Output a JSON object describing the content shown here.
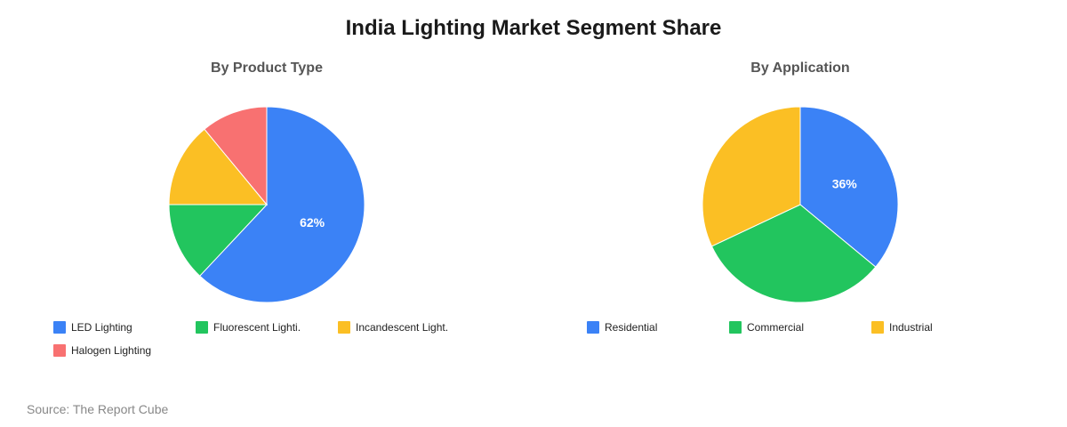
{
  "title": "India Lighting Market Segment Share",
  "source": "Source: The Report Cube",
  "chart_data": [
    {
      "type": "pie",
      "title": "By Product Type",
      "categories": [
        "LED Lighting",
        "Fluorescent Lighti.",
        "Incandescent Light.",
        "Halogen Lighting"
      ],
      "values": [
        62,
        13,
        14,
        11
      ],
      "colors": [
        "#3b82f6",
        "#22c55e",
        "#fbbf24",
        "#f87171"
      ],
      "labels": [
        "62%",
        "",
        "",
        ""
      ],
      "legend": "bottom"
    },
    {
      "type": "pie",
      "title": "By Application",
      "categories": [
        "Residential",
        "Commercial",
        "Industrial"
      ],
      "values": [
        36,
        32,
        32
      ],
      "colors": [
        "#3b82f6",
        "#22c55e",
        "#fbbf24"
      ],
      "labels": [
        "36%",
        "",
        ""
      ],
      "legend": "bottom"
    }
  ]
}
